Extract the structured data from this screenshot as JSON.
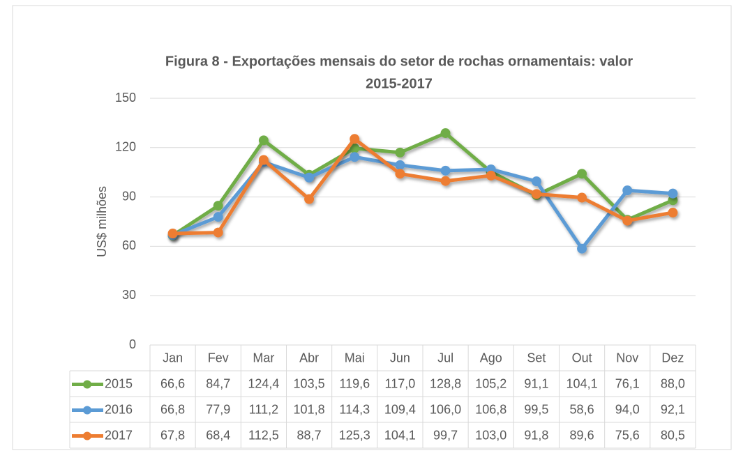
{
  "chart_data": {
    "type": "line",
    "title": [
      "Figura 8 - Exportações mensais do setor de rochas ornamentais: valor",
      "2015-2017"
    ],
    "y_label": "US$ milhões",
    "categories": [
      "Jan",
      "Fev",
      "Mar",
      "Abr",
      "Mai",
      "Jun",
      "Jul",
      "Ago",
      "Set",
      "Out",
      "Nov",
      "Dez"
    ],
    "series": [
      {
        "name": "2015",
        "color": "#70ad47",
        "values": [
          66.6,
          84.7,
          124.4,
          103.5,
          119.6,
          117.0,
          128.8,
          105.2,
          91.1,
          104.1,
          76.1,
          88.0
        ],
        "value_labels": [
          "66,6",
          "84,7",
          "124,4",
          "103,5",
          "119,6",
          "117,0",
          "128,8",
          "105,2",
          "91,1",
          "104,1",
          "76,1",
          "88,0"
        ]
      },
      {
        "name": "2016",
        "color": "#5b9bd5",
        "values": [
          66.8,
          77.9,
          111.2,
          101.8,
          114.3,
          109.4,
          106.0,
          106.8,
          99.5,
          58.6,
          94.0,
          92.1
        ],
        "value_labels": [
          "66,8",
          "77,9",
          "111,2",
          "101,8",
          "114,3",
          "109,4",
          "106,0",
          "106,8",
          "99,5",
          "58,6",
          "94,0",
          "92,1"
        ]
      },
      {
        "name": "2017",
        "color": "#ed7d31",
        "values": [
          67.8,
          68.4,
          112.5,
          88.7,
          125.3,
          104.1,
          99.7,
          103.0,
          91.8,
          89.6,
          75.6,
          80.5
        ],
        "value_labels": [
          "67,8",
          "68,4",
          "112,5",
          "88,7",
          "125,3",
          "104,1",
          "99,7",
          "103,0",
          "91,8",
          "89,6",
          "75,6",
          "80,5"
        ]
      }
    ],
    "ylim": [
      0,
      150
    ],
    "yticks": [
      0,
      30,
      60,
      90,
      120,
      150
    ],
    "grid": true
  }
}
